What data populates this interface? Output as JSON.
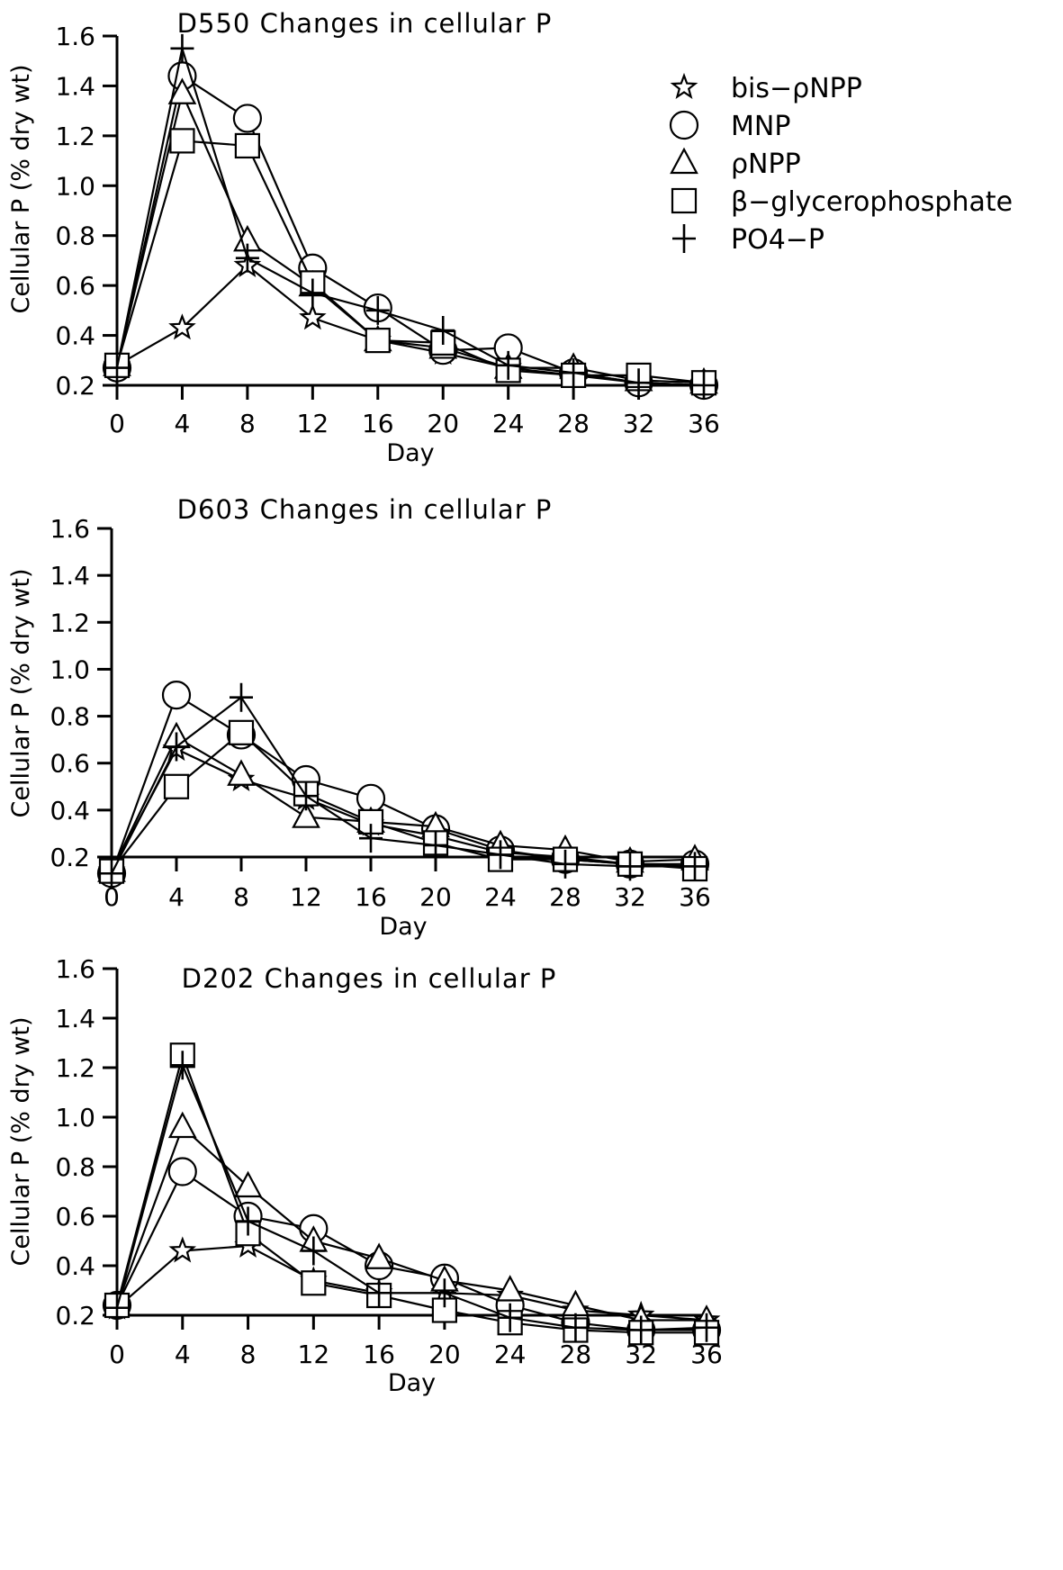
{
  "chart_data": [
    {
      "type": "line",
      "title": "D550   Changes in cellular P",
      "xlabel": "Day",
      "ylabel": "Cellular P (% dry wt)",
      "x": [
        0,
        4,
        8,
        12,
        16,
        20,
        24,
        28,
        32,
        36
      ],
      "x_ticks": [
        "0",
        "4",
        "8",
        "12",
        "16",
        "20",
        "24",
        "28",
        "32",
        "36"
      ],
      "y_ticks": [
        "0.2",
        "0.4",
        "0.6",
        "0.8",
        "1.0",
        "1.2",
        "1.4",
        "1.6"
      ],
      "xlim": [
        0,
        36
      ],
      "ylim": [
        0.2,
        1.6
      ],
      "grid": false,
      "legend": "top-right",
      "series": [
        {
          "name": "bis-ρNPP",
          "marker": "star",
          "values": [
            0.28,
            0.43,
            0.68,
            0.47,
            0.38,
            0.33,
            0.27,
            0.24,
            0.21,
            0.2
          ]
        },
        {
          "name": "MNP",
          "marker": "circle",
          "values": [
            0.27,
            1.44,
            1.27,
            0.67,
            0.51,
            0.34,
            0.35,
            0.25,
            0.21,
            0.2
          ]
        },
        {
          "name": "ρNPP",
          "marker": "triangle",
          "values": [
            0.28,
            1.37,
            0.78,
            0.6,
            0.38,
            0.35,
            0.27,
            0.27,
            0.22,
            0.21
          ]
        },
        {
          "name": "β-glycerophosphate",
          "marker": "square",
          "values": [
            0.28,
            1.18,
            1.16,
            0.61,
            0.38,
            0.37,
            0.26,
            0.24,
            0.24,
            0.21
          ]
        },
        {
          "name": "PO4-P",
          "marker": "plus",
          "values": [
            0.27,
            1.55,
            0.71,
            0.57,
            0.5,
            0.42,
            0.28,
            0.25,
            0.21,
            0.2
          ]
        }
      ]
    },
    {
      "type": "line",
      "title": "D603   Changes in cellular P",
      "xlabel": "Day",
      "ylabel": "Cellular P (% dry wt)",
      "x": [
        0,
        4,
        8,
        12,
        16,
        20,
        24,
        28,
        32,
        36
      ],
      "x_ticks": [
        "0",
        "4",
        "8",
        "12",
        "16",
        "20",
        "24",
        "28",
        "32",
        "36"
      ],
      "y_ticks": [
        "0.2",
        "0.4",
        "0.6",
        "0.8",
        "1.0",
        "1.2",
        "1.4",
        "1.6"
      ],
      "xlim": [
        0,
        36
      ],
      "ylim": [
        0.2,
        1.6
      ],
      "grid": false,
      "series": [
        {
          "name": "bis-ρNPP",
          "marker": "star",
          "values": [
            0.14,
            0.66,
            0.53,
            0.45,
            0.34,
            0.29,
            0.22,
            0.2,
            0.17,
            0.16
          ]
        },
        {
          "name": "MNP",
          "marker": "circle",
          "values": [
            0.13,
            0.89,
            0.72,
            0.53,
            0.45,
            0.32,
            0.23,
            0.19,
            0.17,
            0.17
          ]
        },
        {
          "name": "ρNPP",
          "marker": "triangle",
          "values": [
            0.14,
            0.71,
            0.55,
            0.37,
            0.35,
            0.33,
            0.25,
            0.23,
            0.18,
            0.19
          ]
        },
        {
          "name": "β-glycerophosphate",
          "marker": "square",
          "values": [
            0.14,
            0.5,
            0.73,
            0.47,
            0.35,
            0.26,
            0.19,
            0.19,
            0.17,
            0.15
          ]
        },
        {
          "name": "PO4-P",
          "marker": "plus",
          "values": [
            0.13,
            0.67,
            0.88,
            0.46,
            0.28,
            0.25,
            0.21,
            0.17,
            0.16,
            0.16
          ]
        }
      ]
    },
    {
      "type": "line",
      "title": "D202   Changes in cellular P",
      "xlabel": "Day",
      "ylabel": "Cellular P (% dry wt)",
      "x": [
        0,
        4,
        8,
        12,
        16,
        20,
        24,
        28,
        32,
        36
      ],
      "x_ticks": [
        "0",
        "4",
        "8",
        "12",
        "16",
        "20",
        "24",
        "28",
        "32",
        "36"
      ],
      "y_ticks": [
        "0.2",
        "0.4",
        "0.6",
        "0.8",
        "1.0",
        "1.2",
        "1.4",
        "1.6"
      ],
      "xlim": [
        0,
        36
      ],
      "ylim": [
        0.2,
        1.6
      ],
      "grid": false,
      "series": [
        {
          "name": "bis-ρNPP",
          "marker": "star",
          "values": [
            0.23,
            0.46,
            0.48,
            0.34,
            0.29,
            0.29,
            0.28,
            0.22,
            0.2,
            0.18
          ]
        },
        {
          "name": "MNP",
          "marker": "circle",
          "values": [
            0.24,
            0.78,
            0.6,
            0.55,
            0.4,
            0.35,
            0.24,
            0.17,
            0.14,
            0.14
          ]
        },
        {
          "name": "ρNPP",
          "marker": "triangle",
          "values": [
            0.24,
            0.96,
            0.72,
            0.5,
            0.43,
            0.34,
            0.3,
            0.24,
            0.18,
            0.18
          ]
        },
        {
          "name": "β-glycerophosphate",
          "marker": "square",
          "values": [
            0.24,
            1.25,
            0.53,
            0.33,
            0.28,
            0.22,
            0.17,
            0.14,
            0.13,
            0.13
          ]
        },
        {
          "name": "PO4-P",
          "marker": "plus",
          "values": [
            0.23,
            1.21,
            0.58,
            0.46,
            0.29,
            0.29,
            0.19,
            0.15,
            0.14,
            0.15
          ]
        }
      ]
    }
  ],
  "legend": {
    "items": [
      {
        "label": "bis−ρNPP",
        "marker": "star"
      },
      {
        "label": "MNP",
        "marker": "circle"
      },
      {
        "label": "ρNPP",
        "marker": "triangle"
      },
      {
        "label": "β−glycerophosphate",
        "marker": "square"
      },
      {
        "label": "PO4−P",
        "marker": "plus"
      }
    ]
  }
}
